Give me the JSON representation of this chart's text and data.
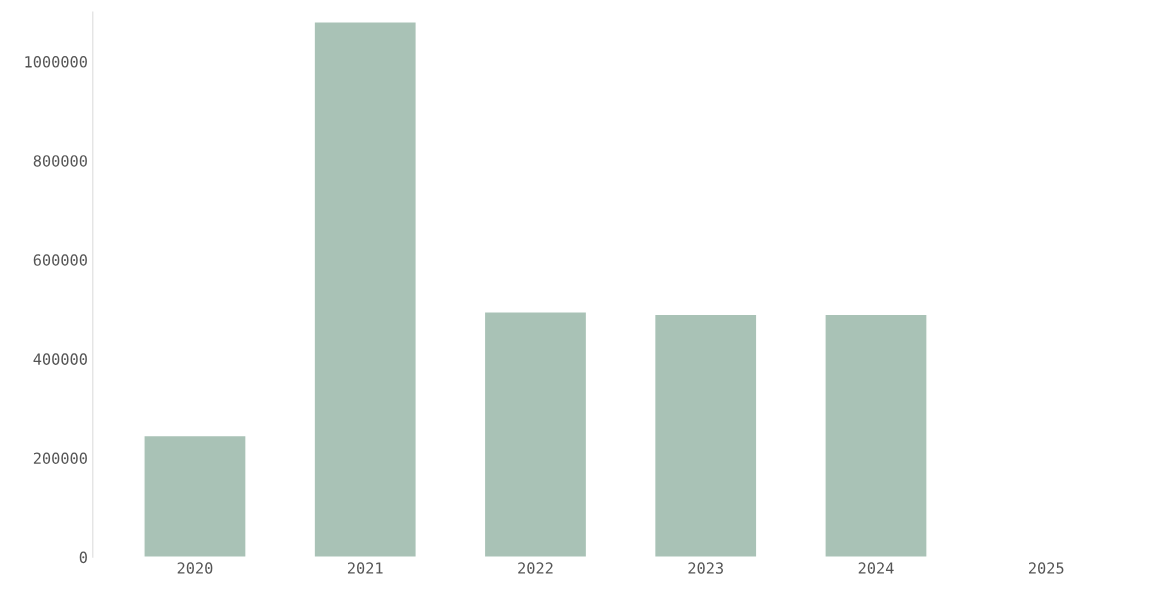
{
  "chart_data": {
    "type": "bar",
    "categories": [
      "2020",
      "2021",
      "2022",
      "2023",
      "2024",
      "2025"
    ],
    "values": [
      245000,
      1080000,
      495000,
      490000,
      490000,
      null
    ],
    "color": "#a9c2b6",
    "ylim": [
      0,
      1100000
    ],
    "yticks": [
      0,
      200000,
      400000,
      600000,
      800000,
      1000000
    ],
    "grid": false
  }
}
